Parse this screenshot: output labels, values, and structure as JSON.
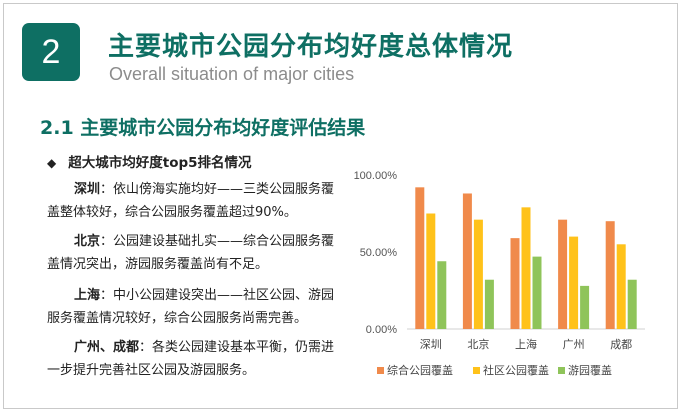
{
  "header": {
    "badge": "2",
    "title": "主要城市公园分布均好度总体情况",
    "subtitle": "Overall situation of major cities"
  },
  "section_title": "2.1 主要城市公园分布均好度评估结果",
  "bullet": {
    "symbol": "◆",
    "text": "超大城市均好度top5排名情况"
  },
  "paragraphs": [
    {
      "city": "深圳",
      "sep": "：",
      "text": "依山傍海实施均好——三类公园服务覆盖整体较好，综合公园服务覆盖超过90%。"
    },
    {
      "city": "北京",
      "sep": "：",
      "text": "公园建设基础扎实——综合公园服务覆盖情况突出，游园服务覆盖尚有不足。"
    },
    {
      "city": "上海",
      "sep": "：",
      "text": "中小公园建设突出——社区公园、游园服务覆盖情况较好，综合公园服务尚需完善。"
    },
    {
      "city": "广州、成都",
      "sep": "：",
      "text": "各类公园建设基本平衡，仍需进一步提升完善社区公园及游园服务。"
    }
  ],
  "colors": {
    "brand": "#0e6f63",
    "series": [
      "#f08a4b",
      "#ffc21a",
      "#8fc45a"
    ]
  },
  "chart_data": {
    "type": "bar",
    "categories": [
      "深圳",
      "北京",
      "上海",
      "广州",
      "成都"
    ],
    "series": [
      {
        "name": "综合公园覆盖",
        "values": [
          0.92,
          0.88,
          0.59,
          0.71,
          0.7
        ]
      },
      {
        "name": "社区公园覆盖",
        "values": [
          0.75,
          0.71,
          0.79,
          0.6,
          0.55
        ]
      },
      {
        "name": "游园覆盖",
        "values": [
          0.44,
          0.32,
          0.47,
          0.28,
          0.32
        ]
      }
    ],
    "yticks": [
      "0.00%",
      "50.00%",
      "100.00%"
    ],
    "ylim": [
      0,
      1
    ],
    "grid": false,
    "legend": "bottom"
  }
}
